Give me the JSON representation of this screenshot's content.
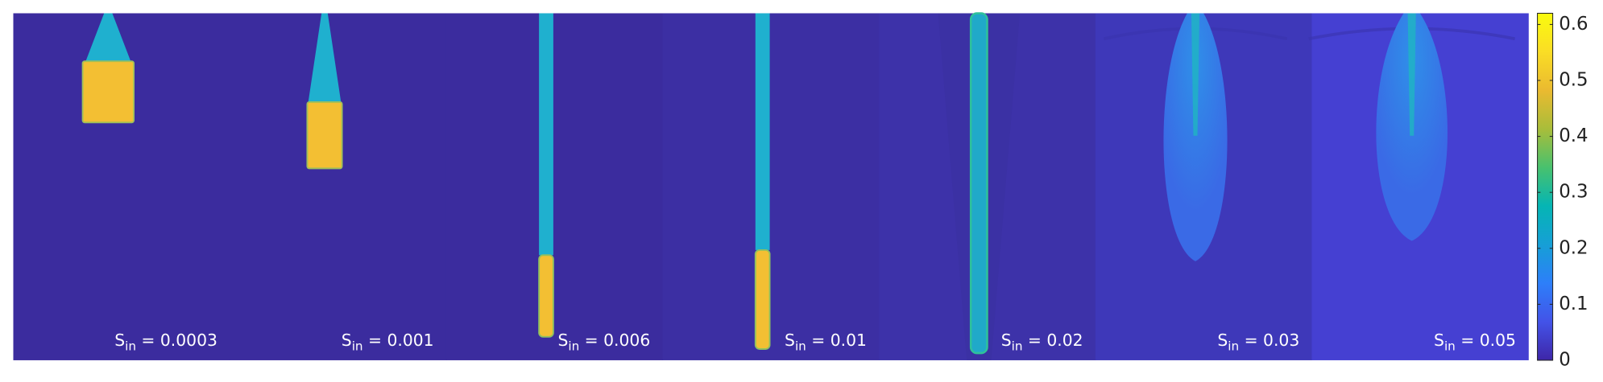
{
  "chart_data": {
    "type": "heatmap",
    "panels": [
      {
        "label": [
          "S",
          "in",
          " = 0.0003"
        ]
      },
      {
        "label": [
          "S",
          "in",
          " = 0.001"
        ]
      },
      {
        "label": [
          "S",
          "in",
          " = 0.006"
        ]
      },
      {
        "label": [
          "S",
          "in",
          " = 0.01"
        ]
      },
      {
        "label": [
          "S",
          "in",
          " = 0.02"
        ]
      },
      {
        "label": [
          "S",
          "in",
          " = 0.03"
        ]
      },
      {
        "label": [
          "S",
          "in",
          " = 0.05"
        ]
      }
    ],
    "colorbar": {
      "ylim": [
        0,
        0.62
      ],
      "yticks": [
        0,
        0.1,
        0.2,
        0.3,
        0.4,
        0.5,
        0.6
      ],
      "colormap": [
        "#3e26a8",
        "#4353e8",
        "#2d7ff9",
        "#169fd6",
        "#05b5b4",
        "#48c16e",
        "#a9bd3a",
        "#eaba30",
        "#fadd25",
        "#f9fb0e"
      ]
    }
  }
}
